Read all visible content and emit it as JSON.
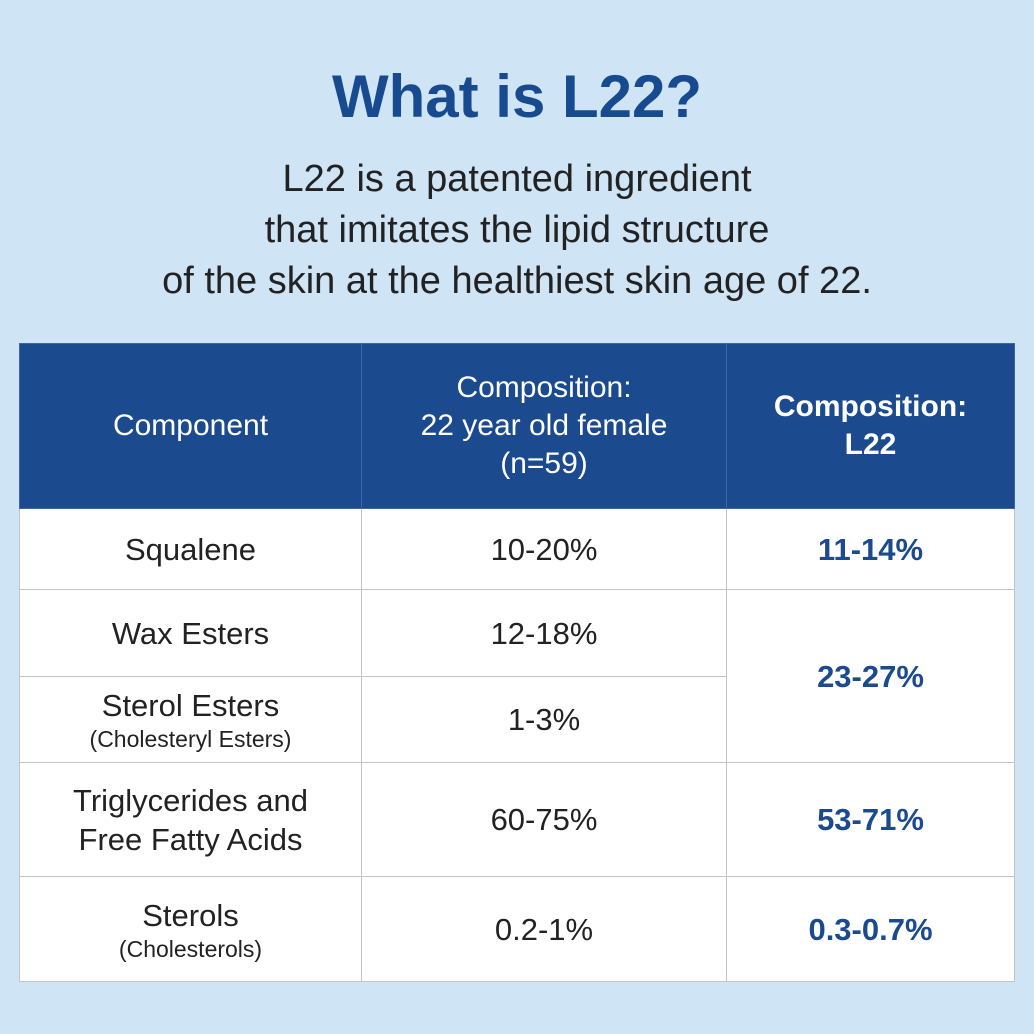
{
  "header": {
    "title": "What is L22?",
    "subtitle_lines": [
      "L22 is a patented ingredient",
      "that imitates the lipid structure",
      "of the skin at the healthiest skin age of 22."
    ]
  },
  "table": {
    "columns": [
      [
        "Component"
      ],
      [
        "Composition:",
        "22 year old female",
        "(n=59)"
      ],
      [
        "Composition:",
        "L22"
      ]
    ],
    "rows": [
      {
        "component": [
          "Squalene"
        ],
        "female": "10-20%",
        "l22": "11-14%"
      },
      {
        "component": [
          "Wax Esters"
        ],
        "female": "12-18%",
        "l22": "23-27%"
      },
      {
        "component": [
          "Sterol Esters"
        ],
        "note": "(Cholesteryl Esters)",
        "female": "1-3%"
      },
      {
        "component": [
          "Triglycerides and",
          "Free Fatty Acids"
        ],
        "female": "60-75%",
        "l22": "53-71%"
      },
      {
        "component": [
          "Sterols"
        ],
        "note": "(Cholesterols)",
        "female": "0.2-1%",
        "l22": "0.3-0.7%"
      }
    ]
  }
}
